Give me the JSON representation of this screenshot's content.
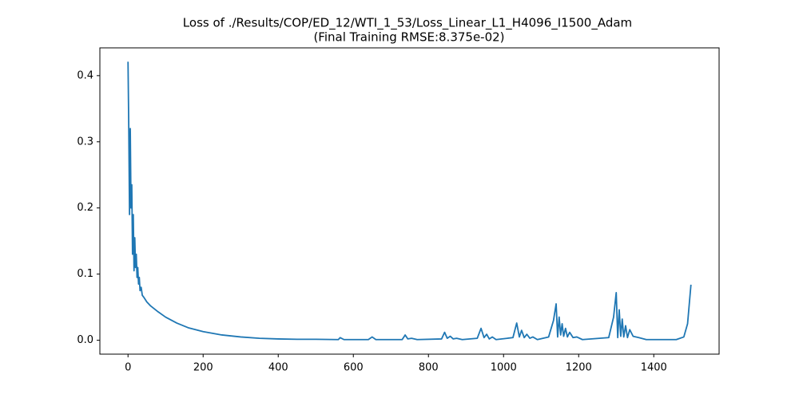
{
  "chart_data": {
    "type": "line",
    "title": "Loss of ./Results/COP/ED_12/WTI_1_53/Loss_Linear_L1_H4096_I1500_Adam",
    "subtitle": "(Final Training RMSE:8.375e-02)",
    "color": "#1f77b4",
    "x": [
      0,
      2,
      4,
      6,
      8,
      10,
      12,
      14,
      16,
      18,
      20,
      22,
      24,
      26,
      28,
      30,
      32,
      35,
      38,
      42,
      50,
      60,
      80,
      100,
      130,
      160,
      200,
      250,
      300,
      350,
      400,
      450,
      500,
      560,
      565,
      575,
      640,
      650,
      660,
      730,
      738,
      745,
      755,
      770,
      835,
      843,
      850,
      858,
      866,
      875,
      890,
      930,
      940,
      948,
      955,
      962,
      970,
      980,
      1025,
      1035,
      1042,
      1048,
      1055,
      1062,
      1070,
      1078,
      1090,
      1120,
      1133,
      1140,
      1144,
      1148,
      1152,
      1156,
      1160,
      1165,
      1170,
      1176,
      1185,
      1195,
      1210,
      1280,
      1293,
      1300,
      1304,
      1308,
      1312,
      1316,
      1320,
      1325,
      1330,
      1336,
      1345,
      1360,
      1380,
      1460,
      1480,
      1490,
      1499
    ],
    "values": [
      0.421,
      0.32,
      0.19,
      0.32,
      0.2,
      0.235,
      0.13,
      0.19,
      0.105,
      0.155,
      0.11,
      0.13,
      0.095,
      0.11,
      0.085,
      0.095,
      0.075,
      0.08,
      0.068,
      0.065,
      0.058,
      0.052,
      0.043,
      0.035,
      0.026,
      0.019,
      0.013,
      0.008,
      0.005,
      0.003,
      0.002,
      0.0015,
      0.0015,
      0.001,
      0.004,
      0.001,
      0.001,
      0.005,
      0.001,
      0.001,
      0.008,
      0.002,
      0.003,
      0.001,
      0.002,
      0.012,
      0.003,
      0.006,
      0.002,
      0.003,
      0.001,
      0.003,
      0.018,
      0.004,
      0.009,
      0.002,
      0.005,
      0.001,
      0.004,
      0.026,
      0.005,
      0.015,
      0.004,
      0.009,
      0.003,
      0.005,
      0.001,
      0.005,
      0.03,
      0.055,
      0.005,
      0.035,
      0.008,
      0.025,
      0.006,
      0.018,
      0.005,
      0.012,
      0.004,
      0.005,
      0.001,
      0.004,
      0.035,
      0.072,
      0.004,
      0.046,
      0.006,
      0.032,
      0.005,
      0.022,
      0.004,
      0.016,
      0.006,
      0.004,
      0.001,
      0.001,
      0.005,
      0.025,
      0.084
    ],
    "xlim": [
      -74.95,
      1573.95
    ],
    "ylim": [
      -0.021,
      0.442
    ],
    "xticks": [
      0,
      200,
      400,
      600,
      800,
      1000,
      1200,
      1400
    ],
    "yticks": [
      {
        "value": 0,
        "label": "0.0"
      },
      0.1,
      0.2,
      0.3,
      0.4
    ]
  }
}
